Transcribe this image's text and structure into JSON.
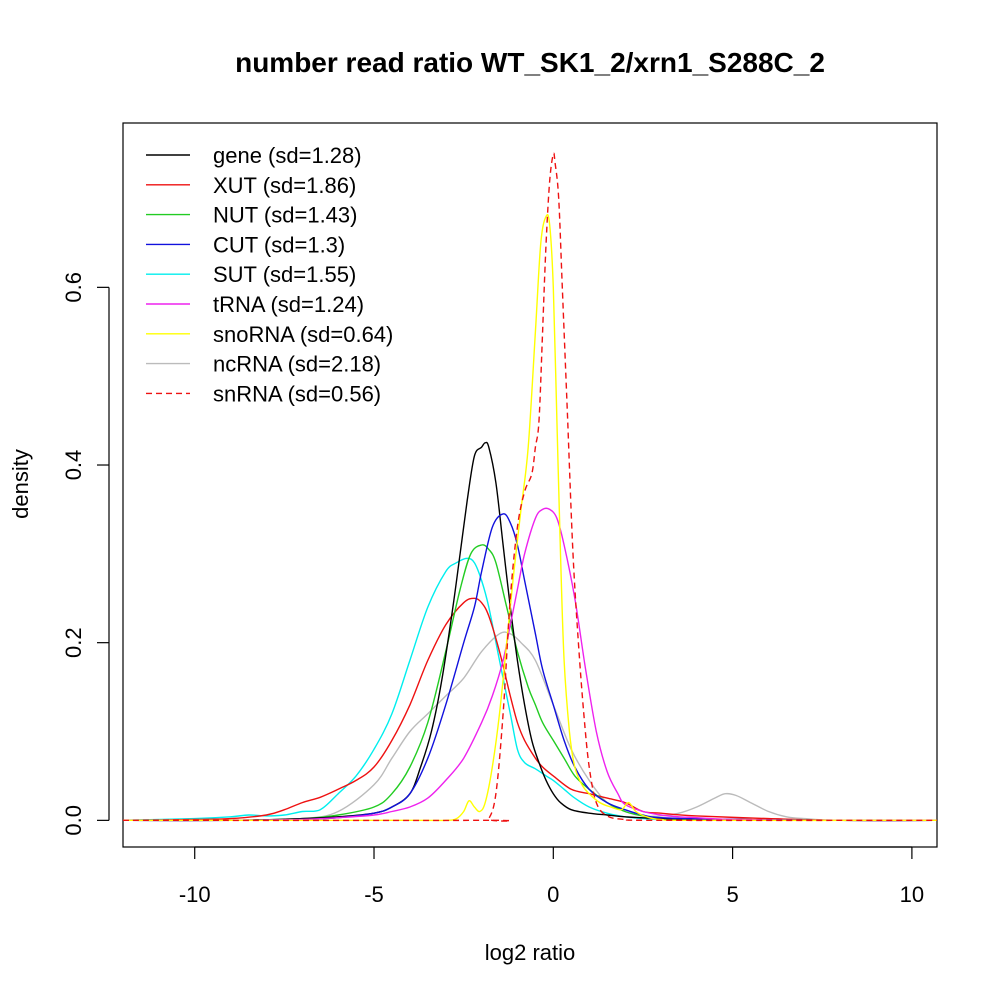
{
  "chart_data": {
    "type": "line",
    "title": "number read ratio WT_SK1_2/xrn1_S288C_2",
    "xlabel": "log2 ratio",
    "ylabel": "density",
    "xlim": [
      -12.0,
      10.7
    ],
    "ylim": [
      -0.03,
      0.785
    ],
    "xticks": [
      -10,
      -5,
      0,
      5,
      10
    ],
    "xtick_labels": [
      "-10",
      "-5",
      "0",
      "5",
      "10"
    ],
    "yticks": [
      0.0,
      0.2,
      0.4,
      0.6
    ],
    "ytick_labels": [
      "0.0",
      "0.2",
      "0.4",
      "0.6"
    ],
    "grid": false,
    "legend_position": "top-left",
    "series": [
      {
        "name": "gene (sd=1.28)",
        "color": "#000000",
        "dash": false,
        "x": [
          -12,
          -9,
          -7,
          -6,
          -5,
          -4.5,
          -4,
          -3.7,
          -3.4,
          -3.1,
          -2.8,
          -2.6,
          -2.4,
          -2.2,
          -2.0,
          -1.9,
          -1.8,
          -1.6,
          -1.4,
          -1.2,
          -1.0,
          -0.8,
          -0.6,
          -0.4,
          -0.2,
          0,
          0.2,
          0.5,
          1.0,
          1.5,
          2.0,
          3,
          5,
          8,
          10.7
        ],
        "y": [
          0,
          0,
          0.002,
          0.004,
          0.008,
          0.015,
          0.03,
          0.06,
          0.1,
          0.16,
          0.24,
          0.3,
          0.36,
          0.41,
          0.42,
          0.425,
          0.42,
          0.38,
          0.31,
          0.24,
          0.18,
          0.13,
          0.09,
          0.065,
          0.045,
          0.03,
          0.02,
          0.012,
          0.008,
          0.006,
          0.004,
          0.002,
          0.001,
          0,
          0
        ]
      },
      {
        "name": "XUT (sd=1.86)",
        "color": "#ee1111",
        "dash": false,
        "x": [
          -12,
          -10,
          -9,
          -8,
          -7.5,
          -7,
          -6.5,
          -6,
          -5.5,
          -5,
          -4.5,
          -4,
          -3.5,
          -3.0,
          -2.5,
          -2.2,
          -2.0,
          -1.8,
          -1.5,
          -1.2,
          -1.0,
          -0.8,
          -0.5,
          -0.3,
          0,
          0.5,
          1.0,
          1.5,
          2.0,
          2.5,
          3.0,
          4,
          6,
          8,
          10.7
        ],
        "y": [
          0,
          0.001,
          0.002,
          0.006,
          0.012,
          0.02,
          0.026,
          0.035,
          0.045,
          0.06,
          0.09,
          0.13,
          0.18,
          0.22,
          0.245,
          0.25,
          0.245,
          0.23,
          0.19,
          0.14,
          0.11,
          0.09,
          0.07,
          0.06,
          0.05,
          0.035,
          0.03,
          0.025,
          0.02,
          0.01,
          0.008,
          0.005,
          0.002,
          0,
          0
        ]
      },
      {
        "name": "NUT (sd=1.43)",
        "color": "#22cc22",
        "dash": false,
        "x": [
          -12,
          -9,
          -7,
          -6,
          -5,
          -4.5,
          -4,
          -3.5,
          -3.0,
          -2.6,
          -2.3,
          -2.0,
          -1.8,
          -1.6,
          -1.3,
          -1.0,
          -0.7,
          -0.5,
          -0.3,
          0,
          0.3,
          0.6,
          1.0,
          1.5,
          2.0,
          2.5,
          3,
          5,
          8,
          10.7
        ],
        "y": [
          0,
          0,
          0.002,
          0.006,
          0.015,
          0.03,
          0.06,
          0.11,
          0.19,
          0.26,
          0.3,
          0.31,
          0.305,
          0.29,
          0.24,
          0.19,
          0.15,
          0.13,
          0.11,
          0.09,
          0.07,
          0.05,
          0.035,
          0.02,
          0.01,
          0.005,
          0.002,
          0.001,
          0,
          0
        ]
      },
      {
        "name": "CUT (sd=1.3)",
        "color": "#1111dd",
        "dash": false,
        "x": [
          -12,
          -9,
          -7,
          -6,
          -5,
          -4.5,
          -4,
          -3.5,
          -3.0,
          -2.5,
          -2.2,
          -2.0,
          -1.7,
          -1.4,
          -1.2,
          -1.0,
          -0.8,
          -0.5,
          -0.3,
          0,
          0.3,
          0.6,
          1.0,
          1.5,
          2.0,
          2.5,
          3,
          5,
          8,
          10.7
        ],
        "y": [
          0,
          0,
          0.001,
          0.003,
          0.008,
          0.015,
          0.03,
          0.07,
          0.13,
          0.2,
          0.24,
          0.28,
          0.33,
          0.345,
          0.335,
          0.31,
          0.27,
          0.21,
          0.17,
          0.13,
          0.09,
          0.06,
          0.035,
          0.02,
          0.012,
          0.006,
          0.003,
          0.001,
          0,
          0
        ]
      },
      {
        "name": "SUT (sd=1.55)",
        "color": "#00eeee",
        "dash": false,
        "x": [
          -12,
          -10,
          -9,
          -8.5,
          -8,
          -7.5,
          -7,
          -6.5,
          -6,
          -5.5,
          -5,
          -4.5,
          -4,
          -3.5,
          -3.0,
          -2.7,
          -2.4,
          -2.2,
          -2.0,
          -1.8,
          -1.5,
          -1.2,
          -1.0,
          -0.8,
          -0.5,
          -0.2,
          0,
          0.3,
          0.6,
          1.0,
          1.5,
          2.0,
          2.5,
          3,
          5,
          8,
          10.7
        ],
        "y": [
          0,
          0.002,
          0.004,
          0.006,
          0.005,
          0.006,
          0.01,
          0.012,
          0.03,
          0.05,
          0.08,
          0.12,
          0.18,
          0.24,
          0.28,
          0.29,
          0.295,
          0.29,
          0.27,
          0.24,
          0.18,
          0.12,
          0.08,
          0.065,
          0.058,
          0.05,
          0.045,
          0.035,
          0.025,
          0.015,
          0.008,
          0.004,
          0.002,
          0.001,
          0,
          0,
          0
        ]
      },
      {
        "name": "tRNA (sd=1.24)",
        "color": "#ee22ee",
        "dash": false,
        "x": [
          -12,
          -9,
          -7,
          -6,
          -5,
          -4.5,
          -4.0,
          -3.5,
          -3.0,
          -2.5,
          -2.0,
          -1.7,
          -1.4,
          -1.2,
          -1.0,
          -0.8,
          -0.5,
          -0.3,
          -0.1,
          0.1,
          0.3,
          0.6,
          0.9,
          1.2,
          1.5,
          1.8,
          2.0,
          2.5,
          3.0,
          3.5,
          4,
          5,
          8,
          10.7
        ],
        "y": [
          0,
          0,
          0.001,
          0.003,
          0.006,
          0.01,
          0.015,
          0.025,
          0.045,
          0.07,
          0.11,
          0.14,
          0.18,
          0.22,
          0.26,
          0.3,
          0.34,
          0.35,
          0.35,
          0.34,
          0.31,
          0.25,
          0.17,
          0.1,
          0.055,
          0.03,
          0.018,
          0.01,
          0.006,
          0.004,
          0.003,
          0.001,
          0,
          0
        ]
      },
      {
        "name": "snoRNA (sd=0.64)",
        "color": "#ffff00",
        "dash": false,
        "x": [
          -12,
          -4,
          -3.0,
          -2.7,
          -2.5,
          -2.35,
          -2.2,
          -2.05,
          -1.9,
          -1.7,
          -1.5,
          -1.3,
          -1.1,
          -0.9,
          -0.7,
          -0.5,
          -0.35,
          -0.2,
          -0.1,
          0,
          0.1,
          0.2,
          0.3,
          0.45,
          0.6,
          0.8,
          1.0,
          1.3,
          1.6,
          1.9,
          2.1,
          2.3,
          2.6,
          3,
          4,
          10.7
        ],
        "y": [
          0,
          0,
          0,
          0.002,
          0.01,
          0.022,
          0.015,
          0.01,
          0.02,
          0.06,
          0.12,
          0.2,
          0.28,
          0.35,
          0.42,
          0.55,
          0.65,
          0.68,
          0.67,
          0.6,
          0.45,
          0.3,
          0.18,
          0.1,
          0.06,
          0.04,
          0.03,
          0.02,
          0.015,
          0.012,
          0.02,
          0.01,
          0.004,
          0.001,
          0,
          0
        ]
      },
      {
        "name": "ncRNA (sd=2.18)",
        "color": "#bbbbbb",
        "dash": false,
        "x": [
          -12,
          -9,
          -7,
          -6,
          -5,
          -4.5,
          -4,
          -3.5,
          -3.0,
          -2.5,
          -2.0,
          -1.5,
          -1.2,
          -0.9,
          -0.5,
          0,
          0.5,
          1.0,
          1.5,
          2.0,
          2.5,
          3.0,
          3.5,
          4.0,
          4.5,
          4.8,
          5.1,
          5.5,
          6.0,
          6.5,
          7,
          8,
          10.7
        ],
        "y": [
          0,
          0,
          0.002,
          0.01,
          0.04,
          0.07,
          0.1,
          0.12,
          0.14,
          0.16,
          0.19,
          0.21,
          0.21,
          0.2,
          0.18,
          0.13,
          0.08,
          0.045,
          0.02,
          0.01,
          0.005,
          0.005,
          0.008,
          0.015,
          0.025,
          0.03,
          0.028,
          0.02,
          0.01,
          0.004,
          0.002,
          0,
          0
        ]
      },
      {
        "name": "snRNA (sd=0.56)",
        "color": "#ee1111",
        "dash": true,
        "x": [
          -12,
          -2,
          -1.8,
          -1.6,
          -1.4,
          -1.2,
          -1.0,
          -0.8,
          -0.6,
          -0.5,
          -0.4,
          -0.3,
          -0.2,
          -0.1,
          0,
          0.05,
          0.15,
          0.25,
          0.4,
          0.55,
          0.7,
          0.85,
          1.0,
          1.2,
          1.5,
          2.0,
          3.0,
          10.7
        ],
        "y": [
          0,
          0,
          0.002,
          0.03,
          0.12,
          0.25,
          0.33,
          0.37,
          0.39,
          0.42,
          0.45,
          0.55,
          0.65,
          0.72,
          0.75,
          0.74,
          0.7,
          0.6,
          0.45,
          0.3,
          0.2,
          0.12,
          0.06,
          0.02,
          0.005,
          0.001,
          0,
          0
        ]
      }
    ]
  }
}
